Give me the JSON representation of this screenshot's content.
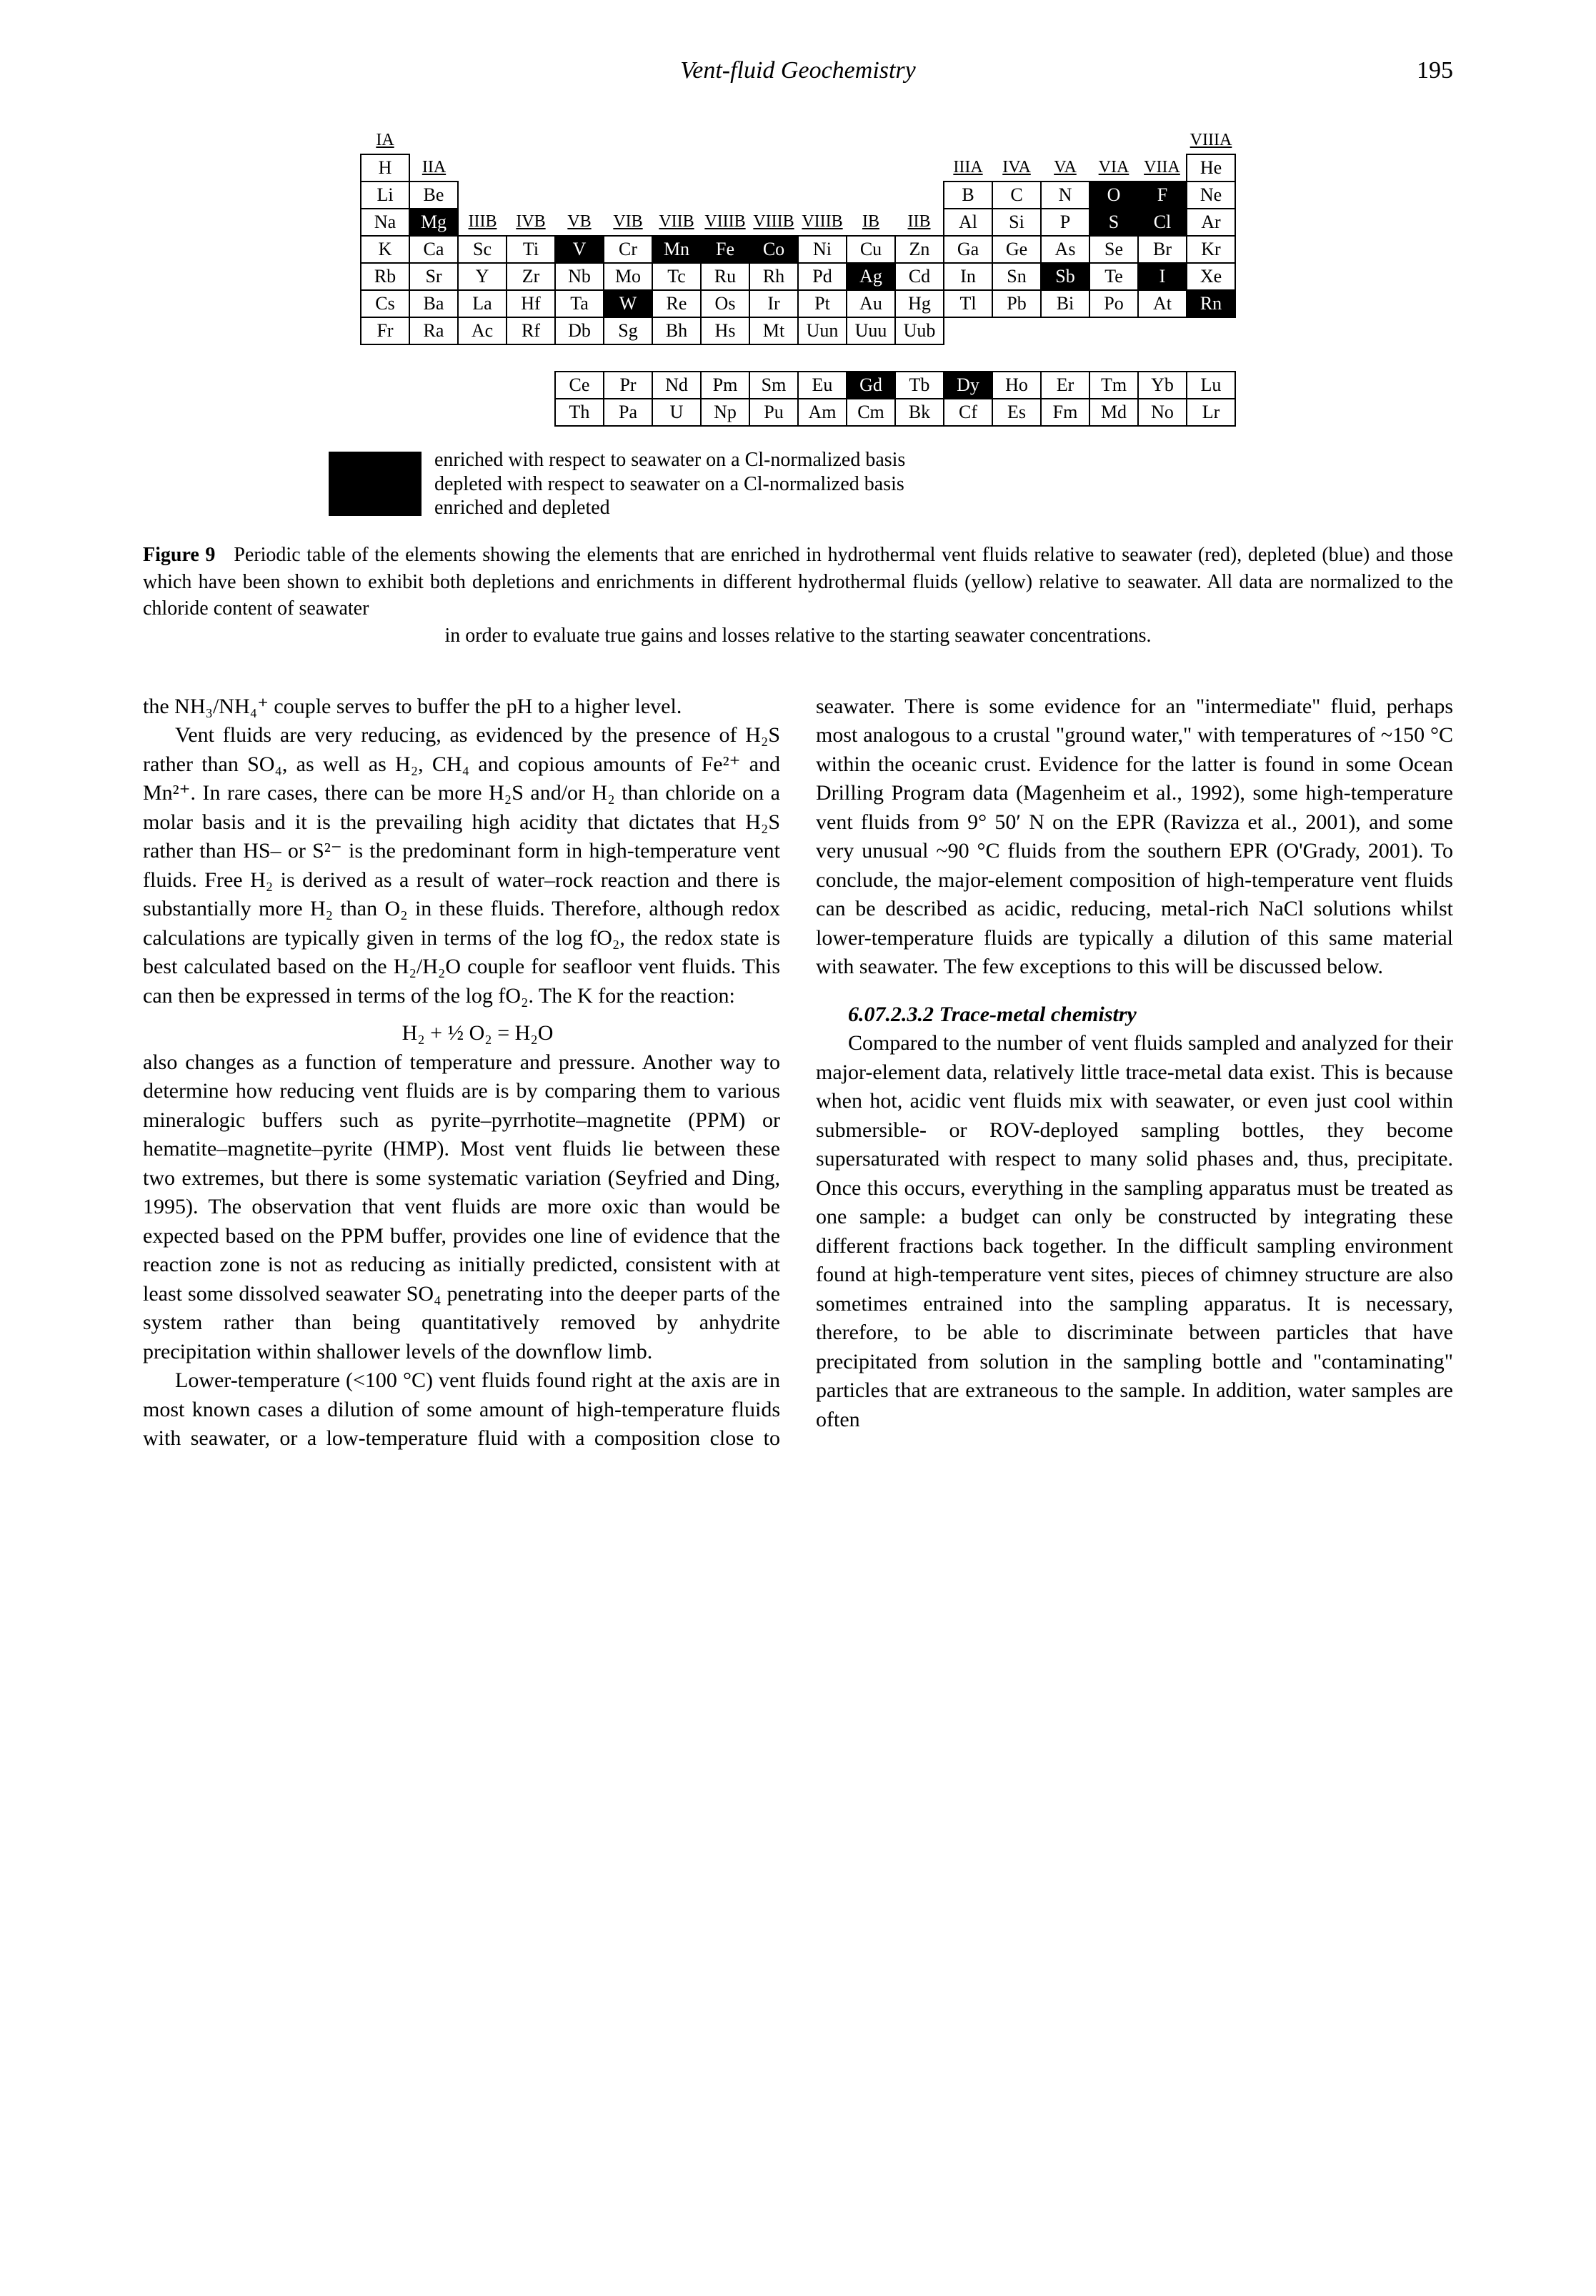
{
  "header": {
    "running_title": "Vent-fluid Geochemistry",
    "page_number": "195"
  },
  "periodic_table": {
    "group_labels": [
      "IA",
      "IIA",
      "IIIB",
      "IVB",
      "VB",
      "VIB",
      "VIIB",
      "VIIIB",
      "VIIIB",
      "VIIIB",
      "IB",
      "IIB",
      "IIIA",
      "IVA",
      "VA",
      "VIA",
      "VIIA",
      "VIIIA"
    ],
    "rows": [
      [
        "H",
        "",
        "",
        "",
        "",
        "",
        "",
        "",
        "",
        "",
        "",
        "",
        "",
        "",
        "",
        "",
        "",
        "He"
      ],
      [
        "Li",
        "Be",
        "",
        "",
        "",
        "",
        "",
        "",
        "",
        "",
        "",
        "",
        "B",
        "C",
        "N",
        "O",
        "F",
        "Ne"
      ],
      [
        "Na",
        "Mg",
        "",
        "",
        "",
        "",
        "",
        "",
        "",
        "",
        "",
        "",
        "Al",
        "Si",
        "P",
        "S",
        "Cl",
        "Ar"
      ],
      [
        "K",
        "Ca",
        "Sc",
        "Ti",
        "V",
        "Cr",
        "Mn",
        "Fe",
        "Co",
        "Ni",
        "Cu",
        "Zn",
        "Ga",
        "Ge",
        "As",
        "Se",
        "Br",
        "Kr"
      ],
      [
        "Rb",
        "Sr",
        "Y",
        "Zr",
        "Nb",
        "Mo",
        "Tc",
        "Ru",
        "Rh",
        "Pd",
        "Ag",
        "Cd",
        "In",
        "Sn",
        "Sb",
        "Te",
        "I",
        "Xe"
      ],
      [
        "Cs",
        "Ba",
        "La",
        "Hf",
        "Ta",
        "W",
        "Re",
        "Os",
        "Ir",
        "Pt",
        "Au",
        "Hg",
        "Tl",
        "Pb",
        "Bi",
        "Po",
        "At",
        "Rn"
      ],
      [
        "Fr",
        "Ra",
        "Ac",
        "Rf",
        "Db",
        "Sg",
        "Bh",
        "Hs",
        "Mt",
        "Uun",
        "Uuu",
        "Uub",
        "",
        "",
        "",
        "",
        "",
        ""
      ]
    ],
    "lanthanides": [
      "Ce",
      "Pr",
      "Nd",
      "Pm",
      "Sm",
      "Eu",
      "Gd",
      "Tb",
      "Dy",
      "Ho",
      "Er",
      "Tm",
      "Yb",
      "Lu"
    ],
    "actinides": [
      "Th",
      "Pa",
      "U",
      "Np",
      "Pu",
      "Am",
      "Cm",
      "Bk",
      "Cf",
      "Es",
      "Fm",
      "Md",
      "No",
      "Lr"
    ],
    "highlighted": [
      "Mg",
      "V",
      "Mn",
      "Fe",
      "Co",
      "Ag",
      "Sb",
      "I",
      "W",
      "Rn",
      "Gd",
      "Dy",
      "O",
      "F",
      "S",
      "Cl"
    ],
    "highlight_color": "#000000",
    "cell_border_color": "#000000",
    "font_size_pt": 18
  },
  "legend": {
    "swatch_color": "#000000",
    "lines": [
      "enriched with respect to seawater on a Cl-normalized basis",
      "depleted with respect to seawater on a Cl-normalized basis",
      "enriched and depleted"
    ]
  },
  "figure_caption": {
    "label": "Figure 9",
    "text_main": "Periodic table of the elements showing the elements that are enriched in hydrothermal vent fluids relative to seawater (red), depleted (blue) and those which have been shown to exhibit both depletions and enrichments in different hydrothermal fluids (yellow) relative to seawater. All data are normalized to the chloride content of seawater",
    "text_last": "in order to evaluate true gains and losses relative to the starting seawater concentrations."
  },
  "body": {
    "p1": "the NH₃/NH₄⁺ couple serves to buffer the pH to a higher level.",
    "p2": "Vent fluids are very reducing, as evidenced by the presence of H₂S rather than SO₄, as well as H₂, CH₄ and copious amounts of Fe²⁺ and Mn²⁺. In rare cases, there can be more H₂S and/or H₂ than chloride on a molar basis and it is the prevailing high acidity that dictates that H₂S rather than HS– or S²⁻ is the predominant form in high-temperature vent fluids. Free H₂ is derived as a result of water–rock reaction and there is substantially more H₂ than O₂ in these fluids. Therefore, although redox calculations are typically given in terms of the log fO₂, the redox state is best calculated based on the H₂/H₂O couple for seafloor vent fluids. This can then be expressed in terms of the log fO₂. The K for the reaction:",
    "equation": "H₂ + ½ O₂ = H₂O",
    "p3": "also changes as a function of temperature and pressure. Another way to determine how reducing vent fluids are is by comparing them to various mineralogic buffers such as pyrite–pyrrhotite–magnetite (PPM) or hematite–magnetite–pyrite (HMP). Most vent fluids lie between these two extremes, but there is some systematic variation (Seyfried and Ding, 1995). The observation that vent fluids are more oxic than would be expected based on the PPM buffer, provides one line of evidence that the reaction zone is not as reducing as initially predicted, consistent with at least some dissolved seawater SO₄ penetrating into the deeper parts of the system rather than being quantitatively removed by anhydrite precipitation within shallower levels of the downflow limb.",
    "p4": "Lower-temperature (<100 °C) vent fluids found right at the axis are in most known cases a dilution of some amount of high-temperature fluids with seawater, or a low-temperature fluid with a composition close to seawater. There is some evidence for an \"intermediate\" fluid, perhaps most analogous to a crustal \"ground water,\" with temperatures of ~150 °C within the oceanic crust. Evidence for the latter is found in some Ocean Drilling Program data (Magenheim et al., 1992), some high-temperature vent fluids from 9° 50′ N on the EPR (Ravizza et al., 2001), and some very unusual ~90 °C fluids from the southern EPR (O'Grady, 2001). To conclude, the major-element composition of high-temperature vent fluids can be described as acidic, reducing, metal-rich NaCl solutions whilst lower-temperature fluids are typically a dilution of this same material with seawater. The few exceptions to this will be discussed below.",
    "section_head": "6.07.2.3.2   Trace-metal chemistry",
    "p5": "Compared to the number of vent fluids sampled and analyzed for their major-element data, relatively little trace-metal data exist. This is because when hot, acidic vent fluids mix with seawater, or even just cool within submersible- or ROV-deployed sampling bottles, they become supersaturated with respect to many solid phases and, thus, precipitate. Once this occurs, everything in the sampling apparatus must be treated as one sample: a budget can only be constructed by integrating these different fractions back together. In the difficult sampling environment found at high-temperature vent sites, pieces of chimney structure are also sometimes entrained into the sampling apparatus. It is necessary, therefore, to be able to discriminate between particles that have precipitated from solution in the sampling bottle and \"contaminating\" particles that are extraneous to the sample. In addition, water samples are often"
  },
  "colors": {
    "text": "#000000",
    "background": "#ffffff"
  }
}
